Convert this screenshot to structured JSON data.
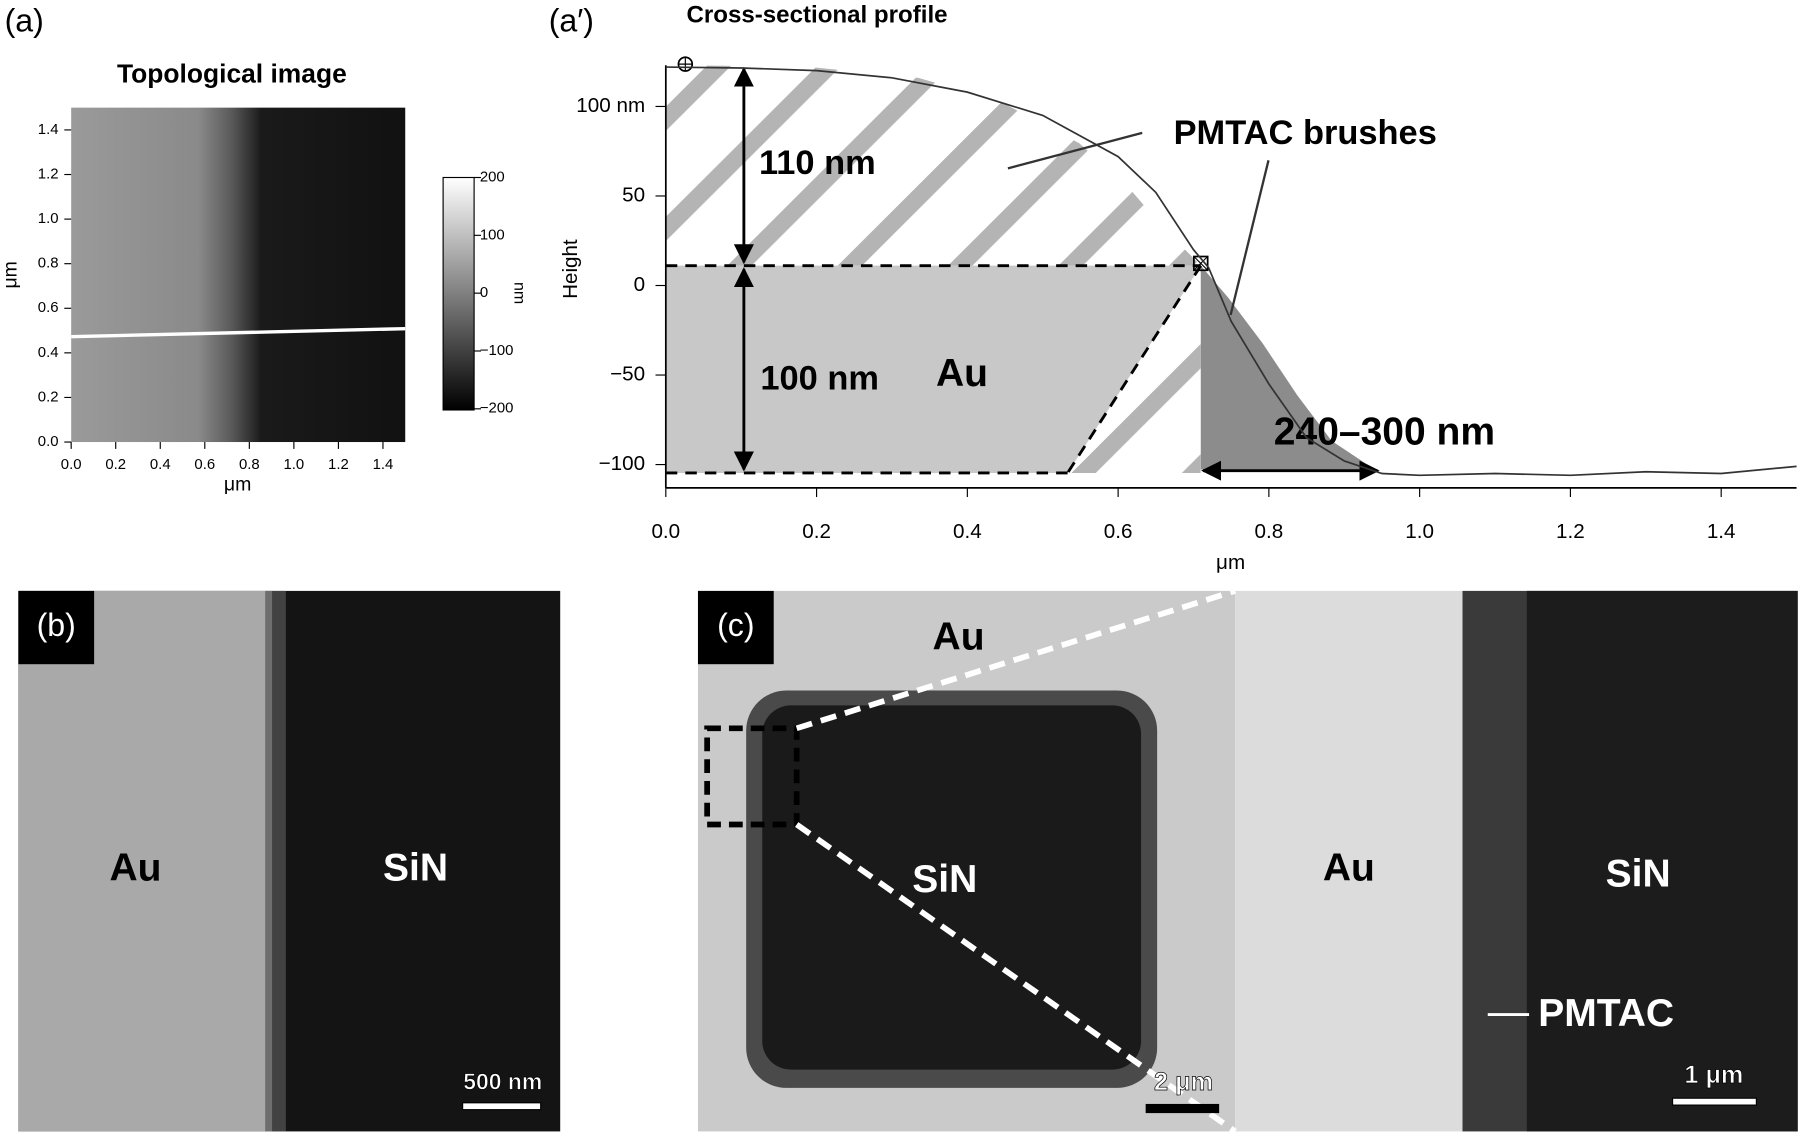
{
  "figure": {
    "panel_a": {
      "label": "(a)",
      "title": "Topological image",
      "xlabel": "μm",
      "ylabel": "μm",
      "xlim": [
        0,
        1.5
      ],
      "ylim": [
        0,
        1.5
      ],
      "xticks": [
        {
          "value": 0,
          "label": "0.0"
        },
        0.2,
        0.4,
        0.6,
        0.8,
        {
          "value": 1,
          "label": "1.0"
        },
        1.2,
        1.4
      ],
      "yticks": [
        {
          "value": 0,
          "label": "0.0"
        },
        0.2,
        0.4,
        0.6,
        0.8,
        {
          "value": 1,
          "label": "1.0"
        },
        1.2,
        1.4
      ],
      "colorbar": {
        "label": "nm",
        "lim": [
          -200,
          200
        ],
        "ticks": [
          200,
          100,
          0,
          {
            "value": -100,
            "label": "−100"
          },
          {
            "value": -200,
            "label": "−200"
          }
        ]
      }
    },
    "panel_a2": {
      "label": "(a′)",
      "title": "Cross-sectional profile",
      "xlabel": "μm",
      "ylabel": "Height",
      "xlim": [
        0,
        1.5
      ],
      "ylim": [
        -113,
        123
      ],
      "xticks": [
        {
          "value": 0,
          "label": "0.0"
        },
        0.2,
        0.4,
        0.6,
        0.8,
        {
          "value": 1,
          "label": "1.0"
        },
        1.2,
        1.4
      ],
      "yticks": [
        {
          "value": 100,
          "label": "100 nm"
        },
        50,
        0,
        {
          "value": -50,
          "label": "−50"
        },
        {
          "value": -100,
          "label": "−100"
        }
      ],
      "profile": {
        "x": [
          0,
          0.1,
          0.2,
          0.3,
          0.4,
          0.5,
          0.6,
          0.65,
          0.7,
          0.72,
          0.75,
          0.8,
          0.85,
          0.9,
          0.95,
          1.0,
          1.1,
          1.2,
          1.3,
          1.4,
          1.5
        ],
        "y": [
          122,
          121.5,
          120,
          116,
          108,
          95,
          72,
          52,
          20,
          10,
          -20,
          -55,
          -85,
          -98,
          -105,
          -106,
          -105,
          -106,
          -104,
          -105,
          -101
        ]
      },
      "annotations": {
        "brush_height": "110 nm",
        "gold_height": "100 nm",
        "gold": "Au",
        "brushes": "PMTAC brushes",
        "brush_width": "240–300 nm"
      }
    },
    "panel_b": {
      "label": "(b)",
      "left": "Au",
      "right": "SiN",
      "scale_bar": "500 nm"
    },
    "panel_c": {
      "label": "(c)",
      "gold_top": "Au",
      "well": "SiN",
      "zoom_gold": "Au",
      "zoom_sin": "SiN",
      "brush": "PMTAC",
      "scale_bar": "2 μm",
      "zoom_scale_bar": "1 μm"
    }
  }
}
